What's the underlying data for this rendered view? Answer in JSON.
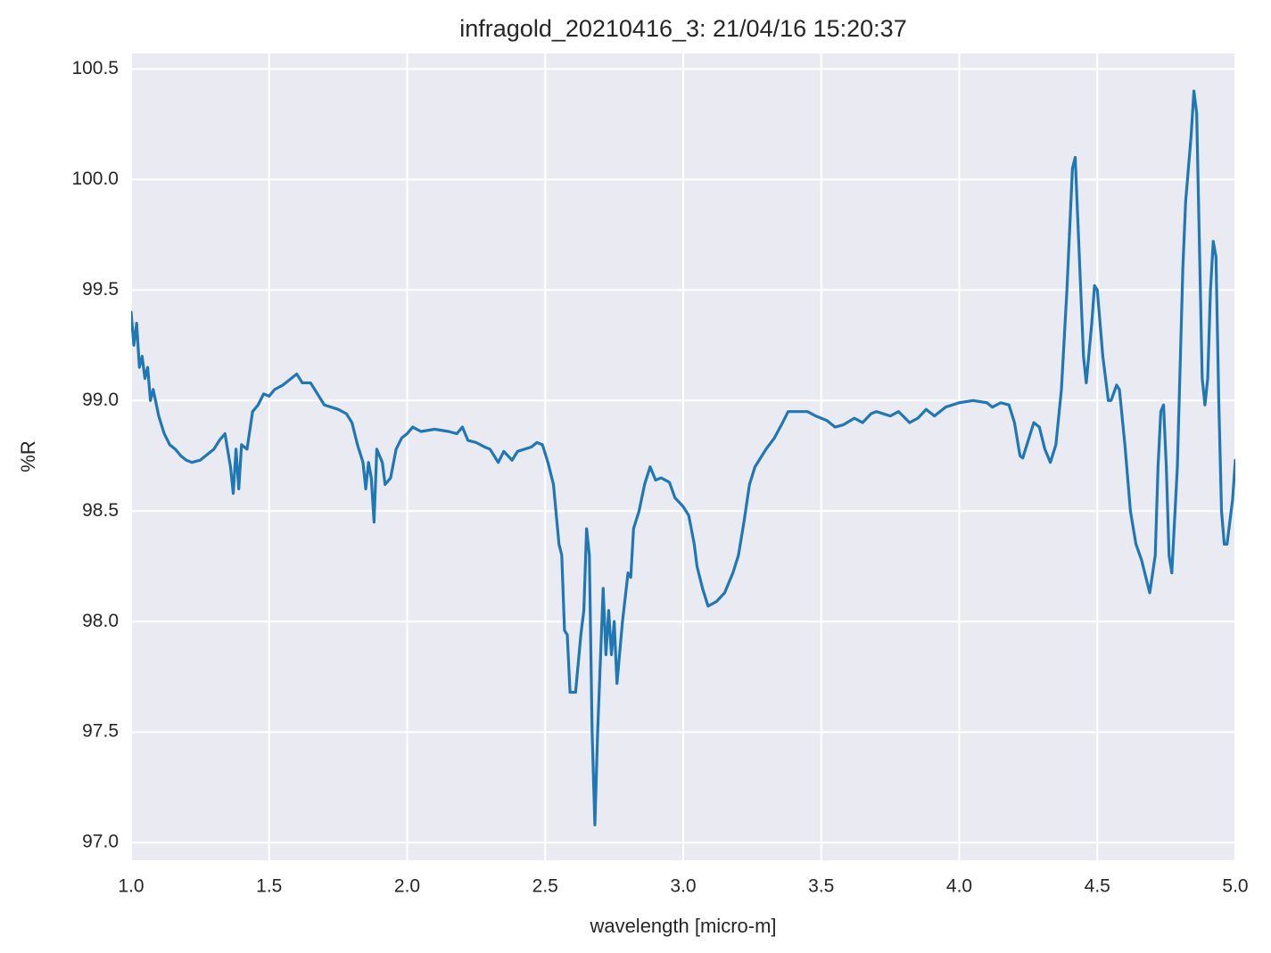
{
  "chart_data": {
    "type": "line",
    "title": "infragold_20210416_3:  21/04/16 15:20:37",
    "xlabel": "wavelength [micro-m]",
    "ylabel": "%R",
    "color": "#1f77b4",
    "grid": true,
    "xlim": [
      1,
      5
    ],
    "ylim": [
      96.92,
      100.57
    ],
    "xticks": [
      {
        "value": 1,
        "label": "1.0"
      },
      1.5,
      {
        "value": 2,
        "label": "2.0"
      },
      2.5,
      {
        "value": 3,
        "label": "3.0"
      },
      3.5,
      {
        "value": 4,
        "label": "4.0"
      },
      4.5,
      {
        "value": 5,
        "label": "5.0"
      }
    ],
    "yticks": [
      {
        "value": 97,
        "label": "97.0"
      },
      97.5,
      {
        "value": 98,
        "label": "98.0"
      },
      98.5,
      {
        "value": 99,
        "label": "99.0"
      },
      99.5,
      {
        "value": 100,
        "label": "100.0"
      },
      100.5
    ],
    "x": [
      1.0,
      1.01,
      1.02,
      1.03,
      1.04,
      1.05,
      1.06,
      1.07,
      1.08,
      1.1,
      1.12,
      1.14,
      1.16,
      1.18,
      1.2,
      1.22,
      1.25,
      1.28,
      1.3,
      1.32,
      1.34,
      1.36,
      1.37,
      1.38,
      1.39,
      1.4,
      1.42,
      1.44,
      1.46,
      1.48,
      1.5,
      1.52,
      1.55,
      1.58,
      1.6,
      1.62,
      1.65,
      1.68,
      1.7,
      1.75,
      1.78,
      1.8,
      1.82,
      1.84,
      1.85,
      1.86,
      1.87,
      1.88,
      1.89,
      1.91,
      1.92,
      1.94,
      1.96,
      1.98,
      2.0,
      2.02,
      2.05,
      2.1,
      2.15,
      2.18,
      2.2,
      2.22,
      2.25,
      2.28,
      2.3,
      2.33,
      2.35,
      2.38,
      2.4,
      2.45,
      2.47,
      2.49,
      2.51,
      2.53,
      2.55,
      2.56,
      2.57,
      2.58,
      2.59,
      2.61,
      2.63,
      2.64,
      2.65,
      2.66,
      2.67,
      2.68,
      2.69,
      2.71,
      2.72,
      2.73,
      2.74,
      2.75,
      2.76,
      2.78,
      2.8,
      2.81,
      2.82,
      2.84,
      2.86,
      2.88,
      2.9,
      2.92,
      2.95,
      2.97,
      3.0,
      3.02,
      3.04,
      3.05,
      3.07,
      3.09,
      3.12,
      3.15,
      3.18,
      3.2,
      3.22,
      3.24,
      3.26,
      3.28,
      3.3,
      3.33,
      3.36,
      3.38,
      3.4,
      3.45,
      3.48,
      3.52,
      3.55,
      3.58,
      3.62,
      3.65,
      3.68,
      3.7,
      3.75,
      3.78,
      3.82,
      3.85,
      3.88,
      3.91,
      3.95,
      4.0,
      4.05,
      4.1,
      4.12,
      4.15,
      4.18,
      4.2,
      4.22,
      4.23,
      4.25,
      4.27,
      4.29,
      4.31,
      4.33,
      4.35,
      4.37,
      4.39,
      4.41,
      4.42,
      4.43,
      4.45,
      4.46,
      4.48,
      4.49,
      4.5,
      4.52,
      4.54,
      4.55,
      4.57,
      4.58,
      4.6,
      4.62,
      4.64,
      4.66,
      4.68,
      4.69,
      4.71,
      4.72,
      4.73,
      4.74,
      4.75,
      4.76,
      4.77,
      4.79,
      4.81,
      4.82,
      4.84,
      4.85,
      4.86,
      4.87,
      4.88,
      4.89,
      4.9,
      4.91,
      4.92,
      4.93,
      4.94,
      4.95,
      4.96,
      4.97,
      4.99,
      5.0
    ],
    "values": [
      99.4,
      99.25,
      99.35,
      99.15,
      99.2,
      99.1,
      99.15,
      99.0,
      99.05,
      98.93,
      98.85,
      98.8,
      98.78,
      98.75,
      98.73,
      98.72,
      98.73,
      98.76,
      98.78,
      98.82,
      98.85,
      98.7,
      98.58,
      98.78,
      98.6,
      98.8,
      98.78,
      98.95,
      98.98,
      99.03,
      99.02,
      99.05,
      99.07,
      99.1,
      99.12,
      99.08,
      99.08,
      99.02,
      98.98,
      98.96,
      98.94,
      98.9,
      98.8,
      98.72,
      98.6,
      98.72,
      98.65,
      98.45,
      98.78,
      98.72,
      98.62,
      98.65,
      98.78,
      98.83,
      98.85,
      98.88,
      98.86,
      98.87,
      98.86,
      98.85,
      98.88,
      98.82,
      98.81,
      98.79,
      98.78,
      98.72,
      98.77,
      98.73,
      98.77,
      98.79,
      98.81,
      98.8,
      98.72,
      98.62,
      98.35,
      98.3,
      97.96,
      97.94,
      97.68,
      97.68,
      97.95,
      98.05,
      98.42,
      98.3,
      97.5,
      97.08,
      97.5,
      98.15,
      97.85,
      98.05,
      97.85,
      98.0,
      97.72,
      98.0,
      98.22,
      98.2,
      98.42,
      98.5,
      98.62,
      98.7,
      98.64,
      98.65,
      98.63,
      98.56,
      98.52,
      98.48,
      98.35,
      98.25,
      98.15,
      98.07,
      98.09,
      98.13,
      98.22,
      98.3,
      98.45,
      98.62,
      98.7,
      98.74,
      98.78,
      98.83,
      98.9,
      98.95,
      98.95,
      98.95,
      98.93,
      98.91,
      98.88,
      98.89,
      98.92,
      98.9,
      98.94,
      98.95,
      98.93,
      98.95,
      98.9,
      98.92,
      98.96,
      98.93,
      98.97,
      98.99,
      99.0,
      98.99,
      98.97,
      98.99,
      98.98,
      98.9,
      98.75,
      98.74,
      98.82,
      98.9,
      98.88,
      98.78,
      98.72,
      98.8,
      99.05,
      99.5,
      100.05,
      100.1,
      99.8,
      99.2,
      99.08,
      99.35,
      99.52,
      99.5,
      99.2,
      99.0,
      99.0,
      99.07,
      99.05,
      98.8,
      98.5,
      98.35,
      98.28,
      98.18,
      98.13,
      98.3,
      98.7,
      98.95,
      98.98,
      98.7,
      98.3,
      98.22,
      98.7,
      99.6,
      99.9,
      100.2,
      100.4,
      100.3,
      99.7,
      99.1,
      98.98,
      99.1,
      99.5,
      99.72,
      99.65,
      99.0,
      98.5,
      98.35,
      98.35,
      98.55,
      98.73
    ]
  }
}
